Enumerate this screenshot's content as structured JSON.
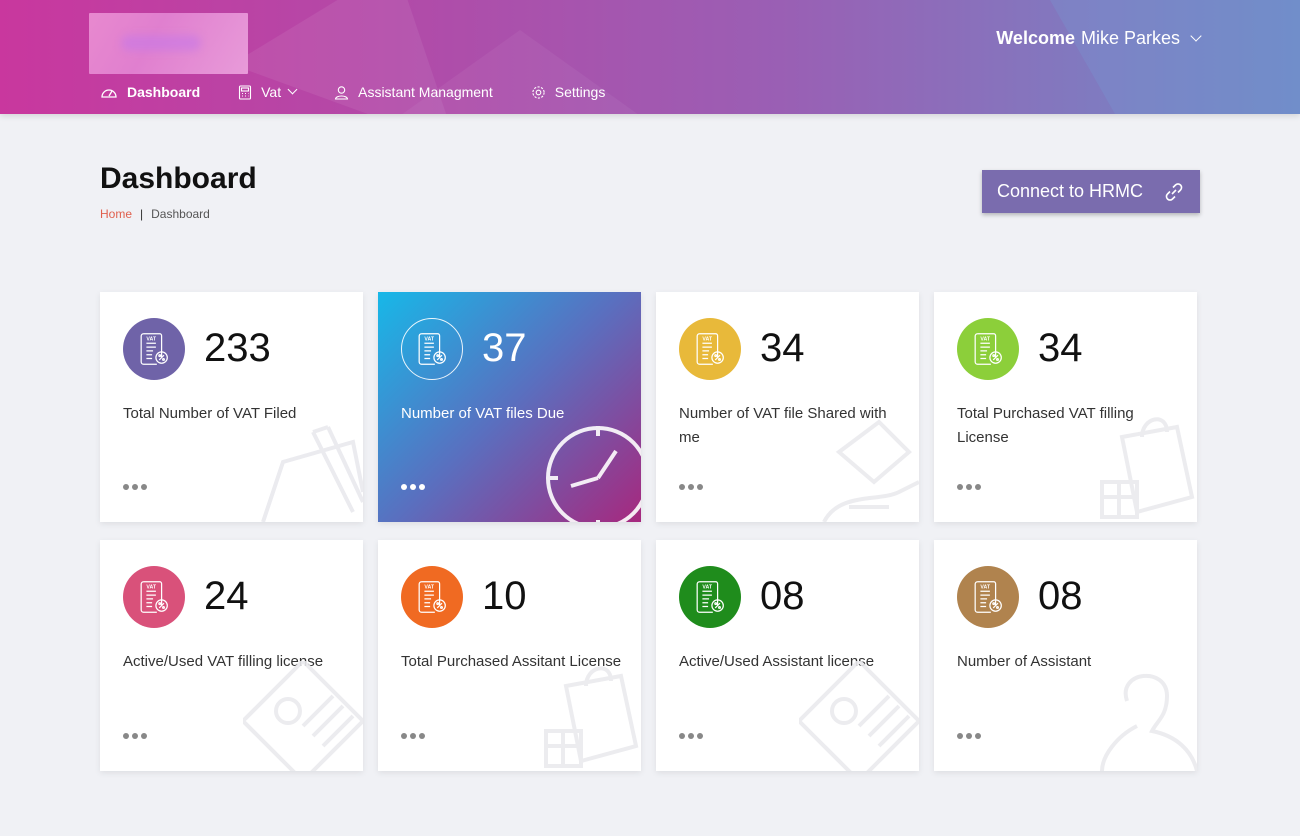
{
  "header": {
    "welcome_prefix": "Welcome",
    "user_name": "Mike Parkes"
  },
  "nav": {
    "dashboard": "Dashboard",
    "vat": "Vat",
    "assistant": "Assistant Managment",
    "settings": "Settings"
  },
  "page": {
    "title": "Dashboard",
    "breadcrumb_home": "Home",
    "breadcrumb_sep": "|",
    "breadcrumb_current": "Dashboard",
    "connect_label": "Connect to HRMC"
  },
  "cards": [
    {
      "count": "233",
      "label": "Total Number of VAT Filed",
      "color": "#6f63a8",
      "icon": "vat-document-icon"
    },
    {
      "count": "37",
      "label": "Number of VAT files Due",
      "color": "transparent",
      "icon": "vat-document-icon"
    },
    {
      "count": "34",
      "label": "Number of VAT file Shared with me",
      "color": "#e8b93a",
      "icon": "vat-document-icon"
    },
    {
      "count": "34",
      "label": "Total Purchased VAT filling License",
      "color": "#8ccf3a",
      "icon": "vat-document-icon"
    },
    {
      "count": "24",
      "label": "Active/Used VAT filling license",
      "color": "#d9517a",
      "icon": "vat-document-icon"
    },
    {
      "count": "10",
      "label": "Total Purchased Assitant License",
      "color": "#f06a22",
      "icon": "vat-document-icon"
    },
    {
      "count": "08",
      "label": "Active/Used Assistant license",
      "color": "#1f8c1c",
      "icon": "vat-document-icon"
    },
    {
      "count": "08",
      "label": "Number of Assistant",
      "color": "#b0834e",
      "icon": "vat-document-icon"
    }
  ]
}
